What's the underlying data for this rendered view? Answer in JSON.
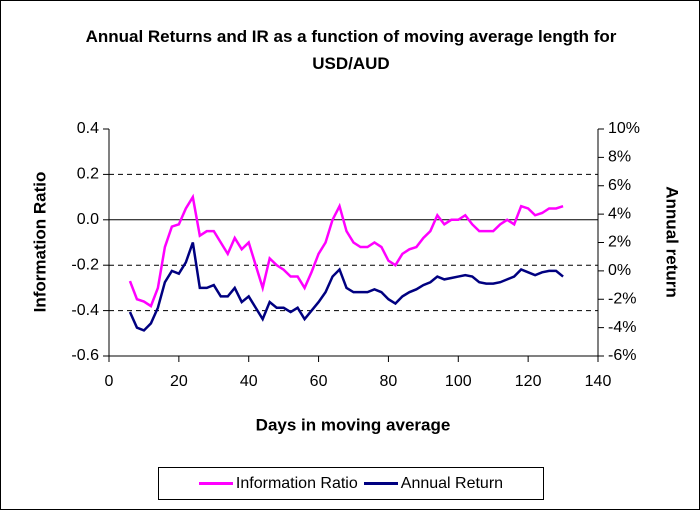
{
  "chart_data": {
    "type": "line",
    "title": "Annual Returns and IR as a function of moving average length for USD/AUD",
    "x_label": "Days in moving average",
    "y_label": "Information Ratio",
    "y2_label": "Annual return",
    "x": [
      6,
      8,
      10,
      12,
      14,
      16,
      18,
      20,
      22,
      24,
      26,
      28,
      30,
      32,
      34,
      36,
      38,
      40,
      42,
      44,
      46,
      48,
      50,
      52,
      54,
      56,
      58,
      60,
      62,
      64,
      66,
      68,
      70,
      72,
      74,
      76,
      78,
      80,
      82,
      84,
      86,
      88,
      90,
      92,
      94,
      96,
      98,
      100,
      102,
      104,
      106,
      108,
      110,
      112,
      114,
      116,
      118,
      120,
      122,
      124,
      126,
      128,
      130
    ],
    "series": [
      {
        "name": "Information Ratio",
        "color": "#ff00ff",
        "values": [
          -0.27,
          -0.35,
          -0.36,
          -0.38,
          -0.3,
          -0.12,
          -0.03,
          -0.02,
          0.05,
          0.1,
          -0.07,
          -0.05,
          -0.05,
          -0.1,
          -0.15,
          -0.08,
          -0.13,
          -0.1,
          -0.2,
          -0.3,
          -0.17,
          -0.2,
          -0.22,
          -0.25,
          -0.25,
          -0.3,
          -0.23,
          -0.15,
          -0.1,
          0.0,
          0.06,
          -0.05,
          -0.1,
          -0.12,
          -0.12,
          -0.1,
          -0.12,
          -0.18,
          -0.2,
          -0.15,
          -0.13,
          -0.12,
          -0.08,
          -0.05,
          0.02,
          -0.02,
          0.0,
          0.0,
          0.02,
          -0.02,
          -0.05,
          -0.05,
          -0.05,
          -0.02,
          0.0,
          -0.02,
          0.06,
          0.05,
          0.02,
          0.03,
          0.05,
          0.05,
          0.06
        ]
      },
      {
        "name": "Annual Return",
        "color": "#000080",
        "axis": "y2",
        "values": [
          -2.9,
          -4.0,
          -4.2,
          -3.7,
          -2.6,
          -0.8,
          0.0,
          -0.2,
          0.6,
          2.0,
          -1.2,
          -1.2,
          -1.0,
          -1.8,
          -1.8,
          -1.2,
          -2.2,
          -1.8,
          -2.6,
          -3.4,
          -2.2,
          -2.6,
          -2.6,
          -2.9,
          -2.6,
          -3.4,
          -2.8,
          -2.2,
          -1.5,
          -0.4,
          0.1,
          -1.2,
          -1.5,
          -1.5,
          -1.5,
          -1.3,
          -1.5,
          -2.0,
          -2.3,
          -1.8,
          -1.5,
          -1.3,
          -1.0,
          -0.8,
          -0.4,
          -0.6,
          -0.5,
          -0.4,
          -0.3,
          -0.4,
          -0.8,
          -0.9,
          -0.9,
          -0.8,
          -0.6,
          -0.4,
          0.1,
          -0.1,
          -0.3,
          -0.1,
          0.0,
          0.0,
          -0.4
        ]
      }
    ],
    "xlim": [
      0,
      140
    ],
    "xticks": [
      0,
      20,
      40,
      60,
      80,
      100,
      120,
      140
    ],
    "ylim": [
      -0.6,
      0.4
    ],
    "yticks": [
      0.4,
      0.2,
      {
        "value": 0,
        "label": "0.0"
      },
      -0.2,
      -0.4,
      -0.6
    ],
    "y2lim": [
      -6,
      10
    ],
    "y2ticks": [
      {
        "value": 10,
        "label": "10%"
      },
      {
        "value": 8,
        "label": "8%"
      },
      {
        "value": 6,
        "label": "6%"
      },
      {
        "value": 4,
        "label": "4%"
      },
      {
        "value": 2,
        "label": "2%"
      },
      {
        "value": 0,
        "label": "0%"
      },
      {
        "value": -2,
        "label": "-2%"
      },
      {
        "value": -4,
        "label": "-4%"
      },
      {
        "value": -6,
        "label": "-6%"
      }
    ],
    "grid": true,
    "legend": "bottom"
  }
}
